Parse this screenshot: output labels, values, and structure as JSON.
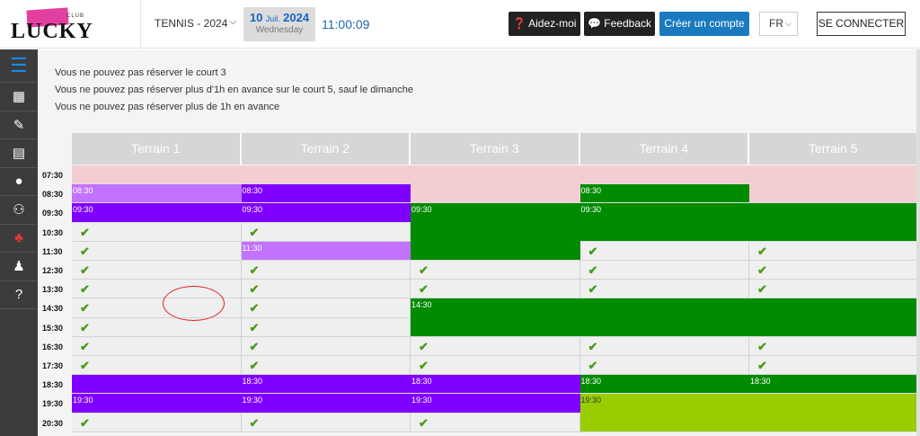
{
  "logo": {
    "word": "LUCKY",
    "club": "CLUB"
  },
  "header": {
    "sport_selector": "TENNIS - 2024",
    "date": {
      "day": "10",
      "month": "Juil.",
      "year": "2024",
      "weekday": "Wednesday"
    },
    "time": "11:00:09",
    "help_button": "Aidez-moi",
    "feedback_button": "Feedback",
    "create_account_button": "Créer un compte",
    "language": "FR",
    "login_button": "SE CONNECTER"
  },
  "sidebar": {
    "items": [
      {
        "icon": "menu-icon",
        "glyph": "☰"
      },
      {
        "icon": "calendar-icon",
        "glyph": "▦"
      },
      {
        "icon": "ticket-icon",
        "glyph": "✎"
      },
      {
        "icon": "book-icon",
        "glyph": "▤"
      },
      {
        "icon": "map-marker-icon",
        "glyph": "●"
      },
      {
        "icon": "add-user-icon",
        "glyph": "⚇"
      },
      {
        "icon": "group-icon",
        "glyph": "♣"
      },
      {
        "icon": "user-icon",
        "glyph": "♟"
      },
      {
        "icon": "question-icon",
        "glyph": "?"
      }
    ]
  },
  "messages": [
    "Vous ne pouvez pas réserver le court 3",
    "Vous ne pouvez pas réserver plus d'1h en avance sur le court 5, sauf le dimanche",
    "Vous ne pouvez pas réserver plus de 1h en avance"
  ],
  "courts": [
    "Terrain 1",
    "Terrain 2",
    "Terrain 3",
    "Terrain 4",
    "Terrain 5"
  ],
  "time_slots": [
    "07:30",
    "08:30",
    "09:30",
    "10:30",
    "11:30",
    "12:30",
    "13:30",
    "14:30",
    "15:30",
    "16:30",
    "17:30",
    "18:30",
    "19:30",
    "20:30"
  ],
  "bookings": [
    {
      "court": 1,
      "start_slot": 0,
      "rows": 1,
      "label": "",
      "color": "pink"
    },
    {
      "court": 2,
      "start_slot": 0,
      "rows": 1,
      "label": "",
      "color": "pink"
    },
    {
      "court": 3,
      "start_slot": 0,
      "rows": 2,
      "label": "",
      "color": "pink"
    },
    {
      "court": 4,
      "start_slot": 0,
      "rows": 1,
      "label": "",
      "color": "pink"
    },
    {
      "court": 5,
      "start_slot": 0,
      "rows": 2,
      "label": "",
      "color": "pink"
    },
    {
      "court": 1,
      "start_slot": 1,
      "rows": 1,
      "label": "08:30",
      "color": "lightpurple"
    },
    {
      "court": 2,
      "start_slot": 1,
      "rows": 1,
      "label": "08:30",
      "color": "purple"
    },
    {
      "court": 4,
      "start_slot": 1,
      "rows": 1,
      "label": "08:30",
      "color": "green"
    },
    {
      "court": 1,
      "start_slot": 2,
      "rows": 1,
      "label": "09:30",
      "color": "purple",
      "span": 2
    },
    {
      "court": 2,
      "start_slot": 2,
      "rows": 1,
      "label": "09:30",
      "color": "purple"
    },
    {
      "court": 3,
      "start_slot": 2,
      "rows": 3,
      "label": "09:30",
      "color": "green"
    },
    {
      "court": 4,
      "start_slot": 2,
      "rows": 2,
      "label": "09:30",
      "color": "green",
      "span": 2
    },
    {
      "court": 2,
      "start_slot": 4,
      "rows": 1,
      "label": "11:30",
      "color": "lightpurple"
    },
    {
      "court": 3,
      "start_slot": 7,
      "rows": 2,
      "label": "14:30",
      "color": "green",
      "span": 3
    },
    {
      "court": 1,
      "start_slot": 11,
      "rows": 1,
      "label": "",
      "color": "purple"
    },
    {
      "court": 2,
      "start_slot": 11,
      "rows": 1,
      "label": "18:30",
      "color": "purple"
    },
    {
      "court": 3,
      "start_slot": 11,
      "rows": 1,
      "label": "18:30",
      "color": "purple"
    },
    {
      "court": 4,
      "start_slot": 11,
      "rows": 1,
      "label": "18:30",
      "color": "green"
    },
    {
      "court": 5,
      "start_slot": 11,
      "rows": 1,
      "label": "18:30",
      "color": "green"
    },
    {
      "court": 1,
      "start_slot": 12,
      "rows": 1,
      "label": "19:30",
      "color": "purple"
    },
    {
      "court": 2,
      "start_slot": 12,
      "rows": 1,
      "label": "19:30",
      "color": "purple"
    },
    {
      "court": 3,
      "start_slot": 12,
      "rows": 1,
      "label": "19:30",
      "color": "purple"
    },
    {
      "court": 4,
      "start_slot": 12,
      "rows": 2,
      "label": "19:30",
      "color": "lime",
      "span": 2
    }
  ],
  "available": [
    {
      "court": 1,
      "slots": [
        3,
        4,
        5,
        6,
        7,
        8,
        9,
        10,
        13
      ]
    },
    {
      "court": 2,
      "slots": [
        3,
        5,
        6,
        7,
        8,
        9,
        10,
        13
      ]
    },
    {
      "court": 3,
      "slots": [
        5,
        6,
        9,
        10,
        13
      ]
    },
    {
      "court": 4,
      "slots": [
        4,
        5,
        6,
        9,
        10
      ]
    },
    {
      "court": 5,
      "slots": [
        4,
        5,
        6,
        9,
        10
      ]
    }
  ],
  "check_glyph": "✔",
  "colors": {
    "pink": "#f4cdd3",
    "purple": "#8000ff",
    "lightpurple": "#c272ff",
    "green": "#008b00",
    "lime": "#9acd00",
    "accent_blue": "#1a7abf",
    "check_green": "#4a9a1c"
  }
}
